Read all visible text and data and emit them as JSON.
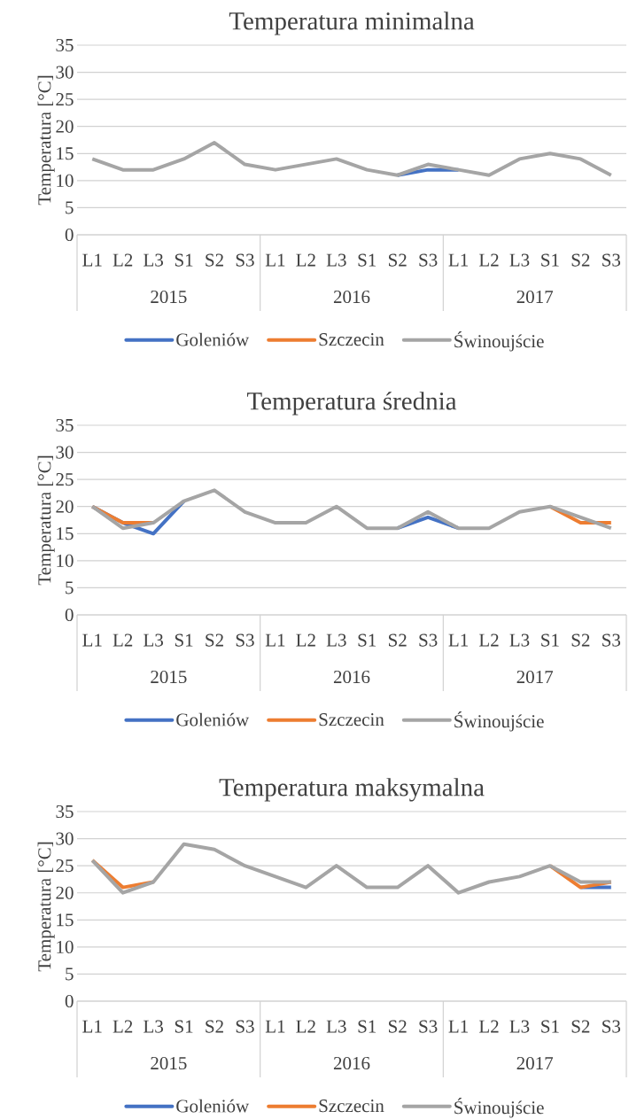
{
  "chart_data": [
    {
      "type": "line",
      "title": "Temperatura minimalna",
      "ylabel": "Temperatura [°C]",
      "categories": [
        "L1",
        "L2",
        "L3",
        "S1",
        "S2",
        "S3",
        "L1",
        "L2",
        "L3",
        "S1",
        "S2",
        "S3",
        "L1",
        "L2",
        "L3",
        "S1",
        "S2",
        "S3"
      ],
      "annotations": [
        "2015",
        "2016",
        "2017"
      ],
      "series": [
        {
          "name": "Goleniów",
          "color": "#4472c4",
          "values": [
            null,
            null,
            null,
            null,
            null,
            null,
            null,
            null,
            null,
            null,
            11,
            12,
            12,
            null,
            null,
            null,
            null,
            null
          ]
        },
        {
          "name": "Szczecin",
          "color": "#ed7d31",
          "values": [
            null,
            null,
            null,
            null,
            null,
            null,
            null,
            null,
            null,
            null,
            null,
            null,
            null,
            null,
            null,
            null,
            null,
            null
          ]
        },
        {
          "name": "Świnoujście",
          "color": "#a5a5a5",
          "values": [
            14,
            12,
            12,
            14,
            17,
            13,
            12,
            13,
            14,
            12,
            11,
            13,
            12,
            11,
            14,
            15,
            14,
            11
          ]
        }
      ],
      "ylim": [
        0,
        35
      ],
      "yticks": [
        0,
        5,
        10,
        15,
        20,
        25,
        30,
        35
      ],
      "grid": "y",
      "legend": "bottom"
    },
    {
      "type": "line",
      "title": "Temperatura średnia",
      "ylabel": "Temperatura [°C]",
      "categories": [
        "L1",
        "L2",
        "L3",
        "S1",
        "S2",
        "S3",
        "L1",
        "L2",
        "L3",
        "S1",
        "S2",
        "S3",
        "L1",
        "L2",
        "L3",
        "S1",
        "S2",
        "S3"
      ],
      "annotations": [
        "2015",
        "2016",
        "2017"
      ],
      "series": [
        {
          "name": "Goleniów",
          "color": "#4472c4",
          "values": [
            20,
            17,
            15,
            21,
            null,
            null,
            null,
            null,
            null,
            null,
            16,
            18,
            16,
            null,
            null,
            null,
            null,
            null
          ]
        },
        {
          "name": "Szczecin",
          "color": "#ed7d31",
          "values": [
            20,
            17,
            17,
            null,
            null,
            null,
            null,
            null,
            null,
            null,
            null,
            null,
            null,
            null,
            null,
            20,
            17,
            17
          ]
        },
        {
          "name": "Świnoujście",
          "color": "#a5a5a5",
          "values": [
            20,
            16,
            17,
            21,
            23,
            19,
            17,
            17,
            20,
            16,
            16,
            19,
            16,
            16,
            19,
            20,
            18,
            16
          ]
        }
      ],
      "ylim": [
        0,
        35
      ],
      "yticks": [
        0,
        5,
        10,
        15,
        20,
        25,
        30,
        35
      ],
      "grid": "y",
      "legend": "bottom"
    },
    {
      "type": "line",
      "title": "Temperatura maksymalna",
      "ylabel": "Temperatura [°C]",
      "categories": [
        "L1",
        "L2",
        "L3",
        "S1",
        "S2",
        "S3",
        "L1",
        "L2",
        "L3",
        "S1",
        "S2",
        "S3",
        "L1",
        "L2",
        "L3",
        "S1",
        "S2",
        "S3"
      ],
      "annotations": [
        "2015",
        "2016",
        "2017"
      ],
      "series": [
        {
          "name": "Goleniów",
          "color": "#4472c4",
          "values": [
            null,
            null,
            null,
            null,
            null,
            null,
            null,
            null,
            null,
            null,
            null,
            null,
            null,
            null,
            null,
            null,
            21,
            21
          ]
        },
        {
          "name": "Szczecin",
          "color": "#ed7d31",
          "values": [
            26,
            21,
            22,
            null,
            null,
            null,
            null,
            null,
            null,
            null,
            null,
            null,
            null,
            null,
            null,
            25,
            21,
            22
          ]
        },
        {
          "name": "Świnoujście",
          "color": "#a5a5a5",
          "values": [
            26,
            20,
            22,
            29,
            28,
            25,
            23,
            21,
            25,
            21,
            21,
            25,
            20,
            22,
            23,
            25,
            22,
            22
          ]
        }
      ],
      "ylim": [
        0,
        35
      ],
      "yticks": [
        0,
        5,
        10,
        15,
        20,
        25,
        30,
        35
      ],
      "grid": "y",
      "legend": "bottom"
    }
  ]
}
